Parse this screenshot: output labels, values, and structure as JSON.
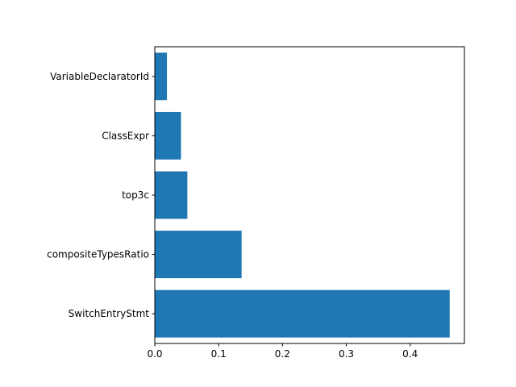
{
  "chart_data": {
    "type": "bar",
    "orientation": "horizontal",
    "categories": [
      "SwitchEntryStmt",
      "compositeTypesRatio",
      "top3c",
      "ClassExpr",
      "VariableDeclaratorId"
    ],
    "values": [
      0.462,
      0.136,
      0.051,
      0.041,
      0.019
    ],
    "xlim": [
      0,
      0.485
    ],
    "xticks": [
      0.0,
      0.1,
      0.2,
      0.3,
      0.4
    ],
    "xtick_labels": [
      "0.0",
      "0.1",
      "0.2",
      "0.3",
      "0.4"
    ],
    "title": "",
    "xlabel": "",
    "ylabel": "",
    "grid": false,
    "bar_color": "#1f77b4"
  }
}
